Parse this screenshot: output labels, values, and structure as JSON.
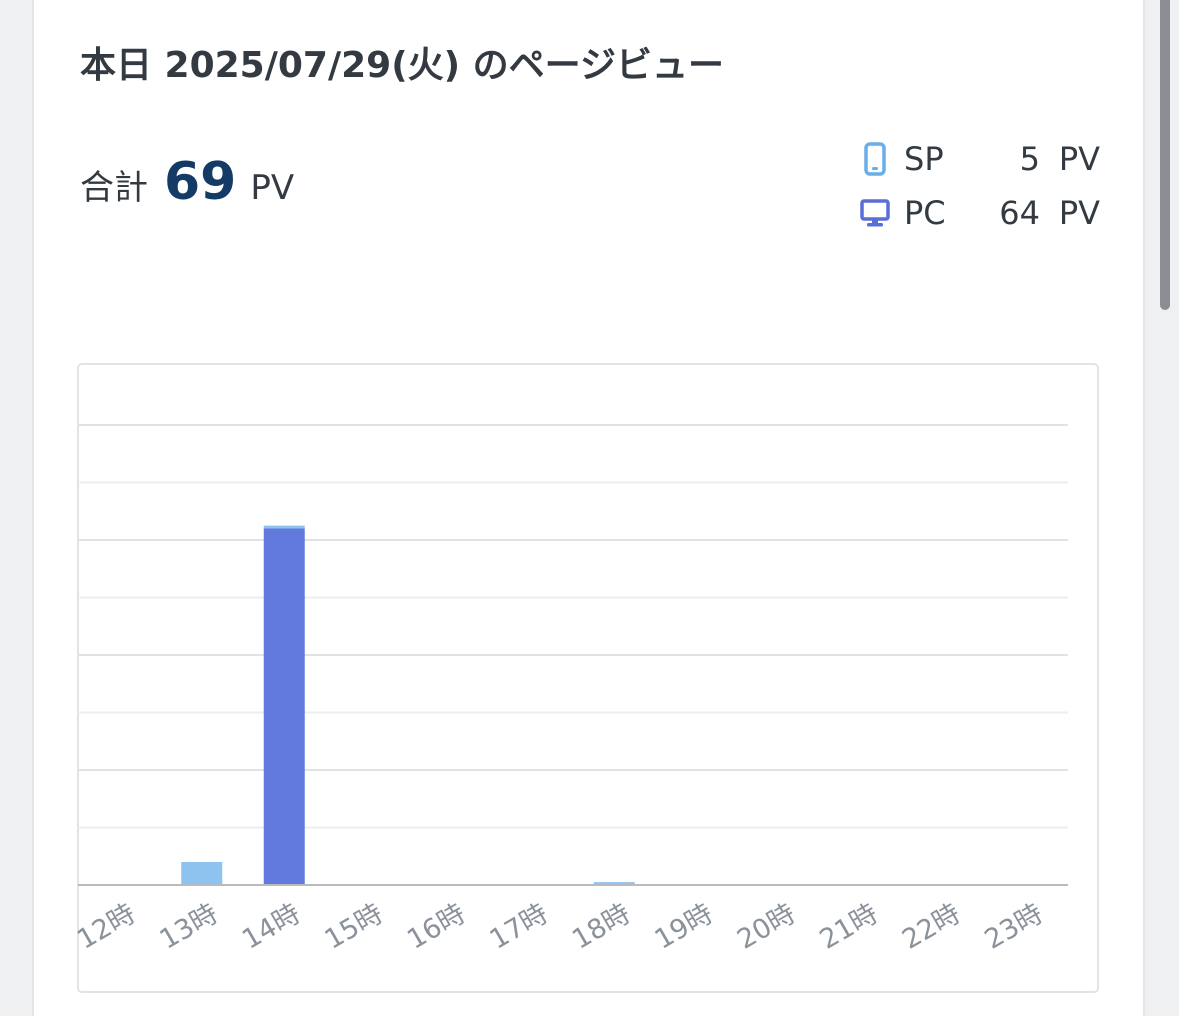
{
  "header": {
    "title": "本日 2025/07/29(火) のページビュー"
  },
  "summary": {
    "total_label": "合計",
    "total_value": "69",
    "unit": "PV"
  },
  "breakdown": [
    {
      "label": "SP",
      "value": "5",
      "unit": "PV",
      "icon": "smartphone-icon",
      "color": "#6aaee8"
    },
    {
      "label": "PC",
      "value": "64",
      "unit": "PV",
      "icon": "desktop-icon",
      "color": "#5a6fd6"
    }
  ],
  "chart_data": {
    "type": "bar",
    "stacked": true,
    "categories": [
      "12時",
      "13時",
      "14時",
      "15時",
      "16時",
      "17時",
      "18時",
      "19時",
      "20時",
      "21時",
      "22時",
      "23時"
    ],
    "series": [
      {
        "name": "PC",
        "values": [
          0,
          0,
          62,
          0,
          0,
          0,
          0,
          0,
          0,
          0,
          0,
          0
        ],
        "color": "#6279de"
      },
      {
        "name": "SP",
        "values": [
          0,
          4,
          0.5,
          0,
          0,
          0,
          0.5,
          0,
          0,
          0,
          0,
          0
        ],
        "color": "#8ec3f0"
      }
    ],
    "ylim": [
      0,
      80
    ],
    "grid": true,
    "xlabel": "",
    "ylabel": ""
  }
}
